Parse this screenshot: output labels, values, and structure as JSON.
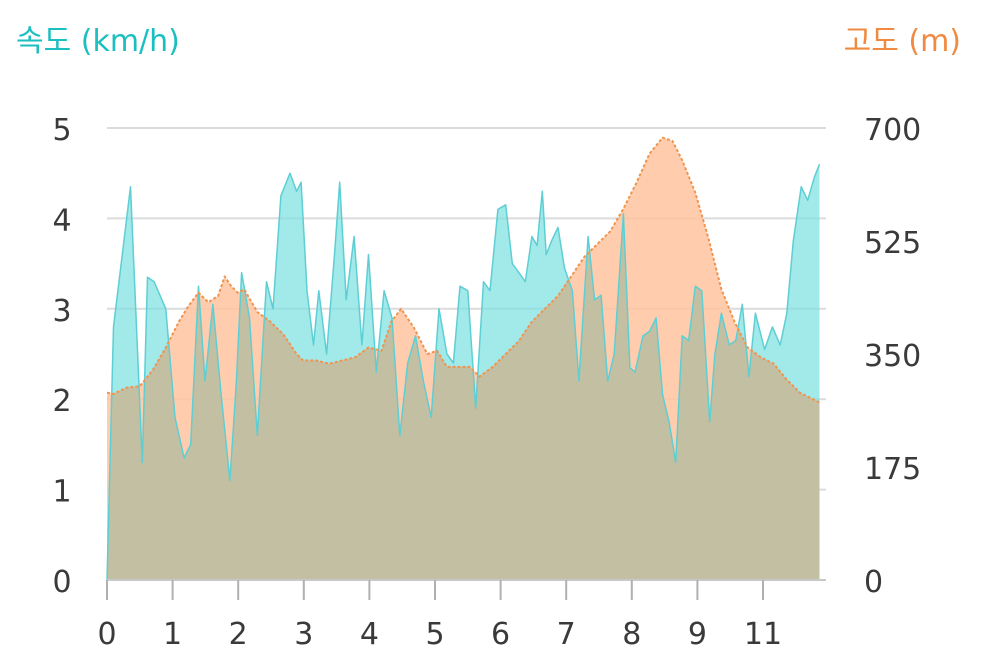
{
  "chart_data": {
    "type": "area",
    "ylabel_left": "속도 (km/h)",
    "ylabel_right": "고도 (m)",
    "x_ticks": [
      "0",
      "1",
      "2",
      "3",
      "4",
      "5",
      "6",
      "7",
      "8",
      "9",
      "11"
    ],
    "xlim": [
      0,
      11
    ],
    "ylim_left": [
      0,
      5
    ],
    "ylim_right": [
      0,
      700
    ],
    "y_ticks_left": [
      "0",
      "1",
      "2",
      "3",
      "4",
      "5"
    ],
    "y_ticks_right": [
      "0",
      "175",
      "350",
      "525",
      "700"
    ],
    "grid": true,
    "colors": {
      "speed": "#7EE0E2",
      "speed_line": "#5DCFD4",
      "elevation": "#FFC4A0",
      "elevation_line": "#F0944F",
      "overlap": "#C2BFA2"
    },
    "series": [
      {
        "axis": "left",
        "x": [
          0.0,
          0.1,
          0.36,
          0.54,
          0.62,
          0.72,
          0.9,
          1.04,
          1.18,
          1.28,
          1.4,
          1.5,
          1.62,
          1.74,
          1.88,
          1.98,
          2.06,
          2.18,
          2.3,
          2.44,
          2.54,
          2.66,
          2.8,
          2.9,
          2.97,
          3.06,
          3.16,
          3.24,
          3.36,
          3.48,
          3.56,
          3.66,
          3.78,
          3.9,
          4.0,
          4.12,
          4.24,
          4.36,
          4.48,
          4.6,
          4.72,
          4.84,
          4.96,
          5.08,
          5.2,
          5.3,
          5.4,
          5.52,
          5.64,
          5.76,
          5.86,
          5.98,
          6.1,
          6.2,
          6.3,
          6.4,
          6.5,
          6.58,
          6.66,
          6.72,
          6.8,
          6.9,
          7.0,
          7.12,
          7.22,
          7.36,
          7.46,
          7.56,
          7.66,
          7.76,
          7.9,
          8.0,
          8.08,
          8.2,
          8.3,
          8.4,
          8.5,
          8.6,
          8.7,
          8.8,
          8.9,
          9.0,
          9.1,
          9.22,
          9.3,
          9.4,
          9.52,
          9.62,
          9.72,
          9.82,
          9.92,
          10.06,
          10.18,
          10.3,
          10.4,
          10.5,
          10.62,
          10.72,
          10.82,
          10.9
        ],
        "y": [
          0.0,
          2.8,
          4.35,
          1.3,
          3.35,
          3.3,
          3.0,
          1.8,
          1.35,
          1.5,
          3.25,
          2.2,
          3.05,
          2.1,
          1.1,
          2.2,
          3.4,
          2.9,
          1.6,
          3.3,
          3.0,
          4.25,
          4.5,
          4.3,
          4.4,
          3.2,
          2.6,
          3.2,
          2.5,
          3.6,
          4.4,
          3.1,
          3.8,
          2.6,
          3.6,
          2.3,
          3.2,
          2.9,
          1.6,
          2.4,
          2.7,
          2.2,
          1.8,
          3.0,
          2.5,
          2.4,
          3.25,
          3.2,
          1.9,
          3.3,
          3.2,
          4.1,
          4.15,
          3.5,
          3.4,
          3.3,
          3.8,
          3.7,
          4.3,
          3.6,
          3.75,
          3.9,
          3.45,
          3.2,
          2.2,
          3.8,
          3.1,
          3.15,
          2.2,
          2.5,
          4.05,
          2.35,
          2.3,
          2.7,
          2.75,
          2.9,
          2.05,
          1.75,
          1.3,
          2.7,
          2.65,
          3.25,
          3.2,
          1.75,
          2.5,
          2.95,
          2.6,
          2.65,
          3.05,
          2.25,
          2.95,
          2.55,
          2.8,
          2.6,
          2.95,
          3.75,
          4.35,
          4.2,
          4.45,
          4.6
        ]
      },
      {
        "axis": "right",
        "x": [
          0.0,
          0.1,
          0.3,
          0.5,
          0.7,
          0.9,
          1.1,
          1.25,
          1.4,
          1.55,
          1.7,
          1.8,
          1.9,
          2.0,
          2.1,
          2.3,
          2.5,
          2.7,
          2.9,
          3.0,
          3.2,
          3.4,
          3.6,
          3.8,
          4.0,
          4.2,
          4.35,
          4.5,
          4.7,
          4.9,
          5.05,
          5.2,
          5.4,
          5.55,
          5.7,
          5.9,
          6.1,
          6.3,
          6.5,
          6.7,
          6.9,
          7.1,
          7.3,
          7.5,
          7.7,
          7.9,
          8.1,
          8.3,
          8.5,
          8.65,
          8.8,
          9.0,
          9.2,
          9.4,
          9.6,
          9.8,
          10.0,
          10.2,
          10.4,
          10.6,
          10.8,
          10.9
        ],
        "y": [
          290,
          288,
          298,
          300,
          325,
          360,
          400,
          425,
          445,
          430,
          440,
          470,
          455,
          445,
          450,
          415,
          400,
          380,
          350,
          340,
          340,
          335,
          340,
          345,
          360,
          355,
          400,
          420,
          390,
          350,
          355,
          330,
          330,
          330,
          315,
          330,
          350,
          370,
          400,
          420,
          440,
          470,
          500,
          520,
          540,
          575,
          615,
          660,
          685,
          680,
          650,
          600,
          530,
          450,
          400,
          360,
          345,
          335,
          310,
          290,
          280,
          275
        ]
      }
    ]
  }
}
